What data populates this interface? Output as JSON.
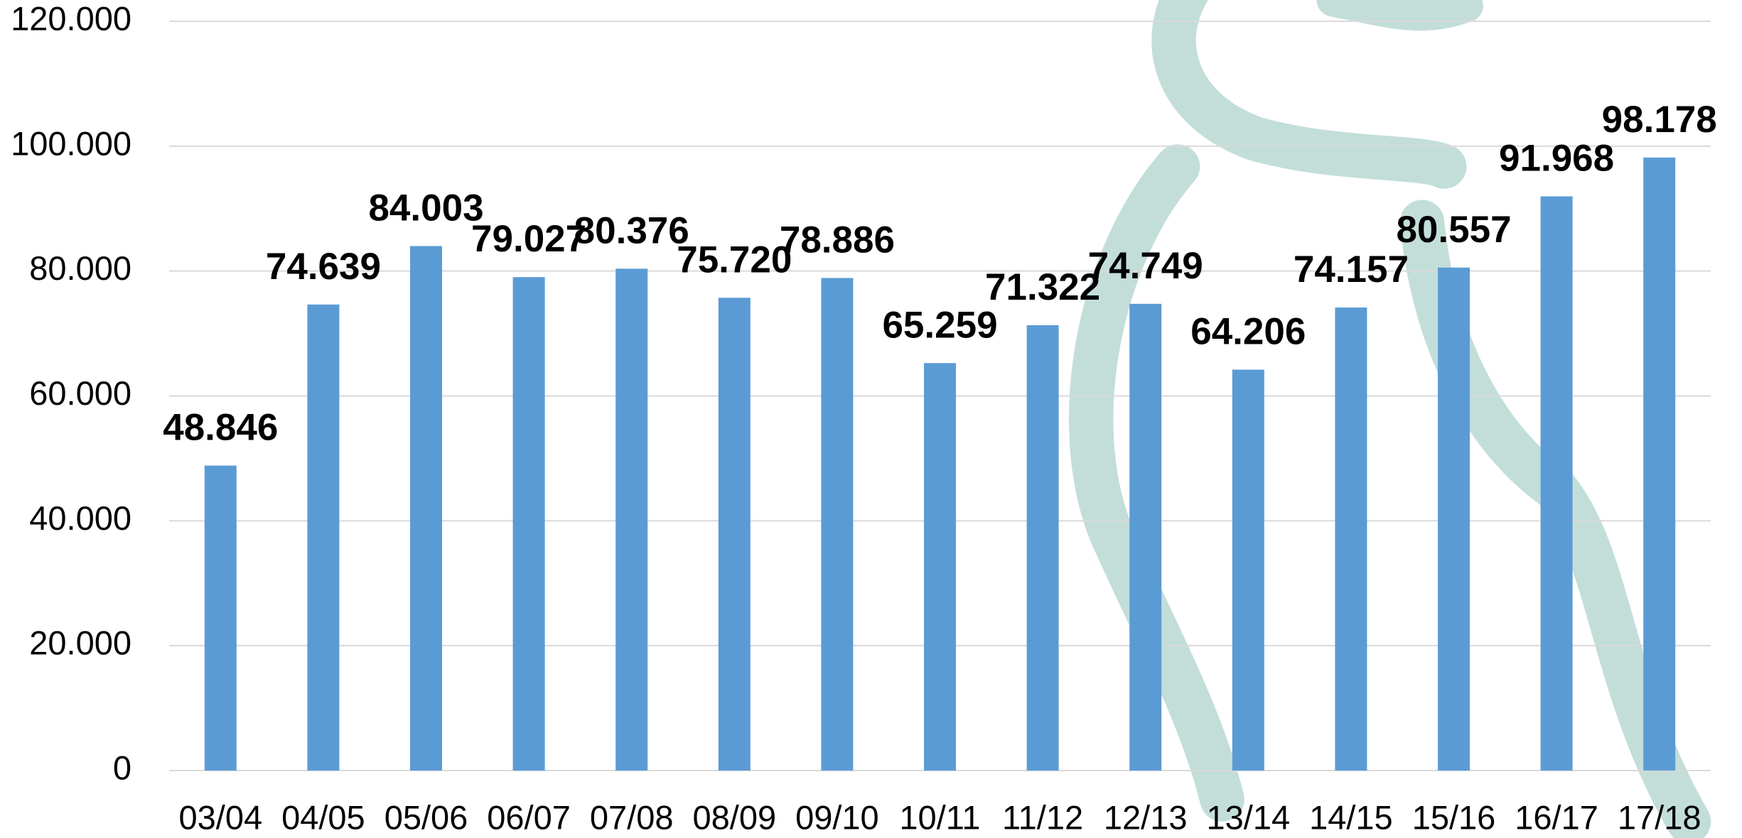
{
  "chart_data": {
    "type": "bar",
    "categories": [
      "03/04",
      "04/05",
      "05/06",
      "06/07",
      "07/08",
      "08/09",
      "09/10",
      "10/11",
      "11/12",
      "12/13",
      "13/14",
      "14/15",
      "15/16",
      "16/17",
      "17/18"
    ],
    "values": [
      48846,
      74639,
      84003,
      79027,
      80376,
      75720,
      78886,
      65259,
      71322,
      74749,
      64206,
      74157,
      80557,
      91968,
      98178
    ],
    "value_labels": [
      "48.846",
      "74.639",
      "84.003",
      "79.027",
      "80.376",
      "75.720",
      "78.886",
      "65.259",
      "71.322",
      "74.749",
      "64.206",
      "74.157",
      "80.557",
      "91.968",
      "98.178"
    ],
    "color": "#5b9bd5",
    "ylim": [
      0,
      120000
    ],
    "yticks": [
      0,
      {
        "value": 20000,
        "label": "20.000"
      },
      {
        "value": 40000,
        "label": "40.000"
      },
      {
        "value": 60000,
        "label": "60.000"
      },
      {
        "value": 80000,
        "label": "80.000"
      },
      {
        "value": 100000,
        "label": "100.000"
      },
      {
        "value": 120000,
        "label": "120.000"
      }
    ],
    "grid": true
  }
}
